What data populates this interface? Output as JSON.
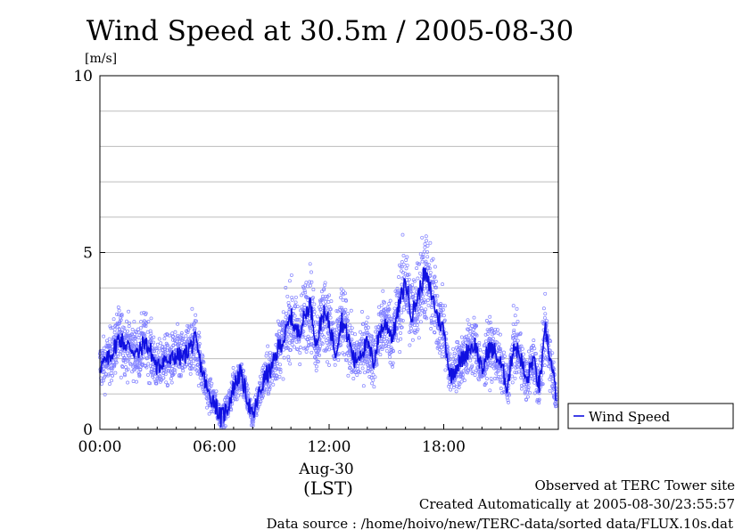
{
  "chart_data": {
    "type": "scatter",
    "title": "Wind Speed at 30.5m / 2005-08-30",
    "ylabel": "[m/s]",
    "ylim": [
      0,
      10
    ],
    "yticks": [
      0,
      5,
      10
    ],
    "xlim": [
      "2005-08-30T00:00",
      "2005-08-31T00:00"
    ],
    "xticks": [
      {
        "label": "00:00",
        "value": "2005-08-30T00:00"
      },
      {
        "label": "06:00",
        "value": "2005-08-30T06:00"
      },
      {
        "label": "12:00",
        "value": "2005-08-30T12:00"
      },
      {
        "label": "18:00",
        "value": "2005-08-30T18:00"
      }
    ],
    "date_label": "Aug-30",
    "tz_label": "(LST)",
    "grid": true,
    "legend_position": "right",
    "series": [
      {
        "name": "Wind Speed",
        "color": "#1010e0",
        "marker_color": "#8080ff",
        "x": [
          "00:00",
          "00:20",
          "00:40",
          "01:00",
          "01:20",
          "01:40",
          "02:00",
          "02:20",
          "02:40",
          "03:00",
          "03:20",
          "03:40",
          "04:00",
          "04:20",
          "04:40",
          "05:00",
          "05:20",
          "05:40",
          "06:00",
          "06:20",
          "06:40",
          "07:00",
          "07:20",
          "07:40",
          "08:00",
          "08:20",
          "08:40",
          "09:00",
          "09:20",
          "09:40",
          "10:00",
          "10:20",
          "10:40",
          "11:00",
          "11:20",
          "11:40",
          "12:00",
          "12:20",
          "12:40",
          "13:00",
          "13:20",
          "13:40",
          "14:00",
          "14:20",
          "14:40",
          "15:00",
          "15:20",
          "15:40",
          "16:00",
          "16:20",
          "16:40",
          "17:00",
          "17:20",
          "17:40",
          "18:00",
          "18:20",
          "18:40",
          "19:00",
          "19:20",
          "19:40",
          "20:00",
          "20:20",
          "20:40",
          "21:00",
          "21:20",
          "21:40",
          "22:00",
          "22:20",
          "22:40",
          "23:00",
          "23:20",
          "23:40",
          "23:55"
        ],
        "y": [
          1.8,
          1.9,
          2.2,
          2.6,
          2.4,
          2.3,
          2.1,
          2.5,
          2.2,
          1.7,
          2.0,
          1.9,
          2.1,
          2.0,
          2.3,
          2.5,
          1.7,
          1.0,
          0.8,
          0.3,
          0.6,
          1.2,
          1.6,
          1.0,
          0.3,
          1.0,
          1.5,
          1.7,
          2.3,
          2.6,
          3.2,
          2.7,
          3.1,
          3.6,
          2.4,
          3.3,
          3.0,
          2.2,
          3.1,
          2.6,
          1.9,
          2.2,
          2.4,
          1.9,
          2.8,
          3.0,
          2.6,
          3.5,
          4.2,
          3.2,
          3.8,
          4.4,
          3.9,
          3.2,
          2.8,
          1.5,
          1.8,
          2.0,
          2.3,
          2.4,
          1.6,
          2.3,
          2.2,
          1.8,
          1.2,
          2.4,
          2.1,
          1.3,
          2.0,
          1.2,
          2.8,
          1.7,
          0.9
        ]
      }
    ]
  },
  "footer": {
    "site": "Observed at TERC Tower site",
    "created": "Created Automatically at 2005-08-30/23:55:57",
    "source": "Data source : /home/hoivo/new/TERC-data/sorted  data/FLUX.10s.dat"
  }
}
